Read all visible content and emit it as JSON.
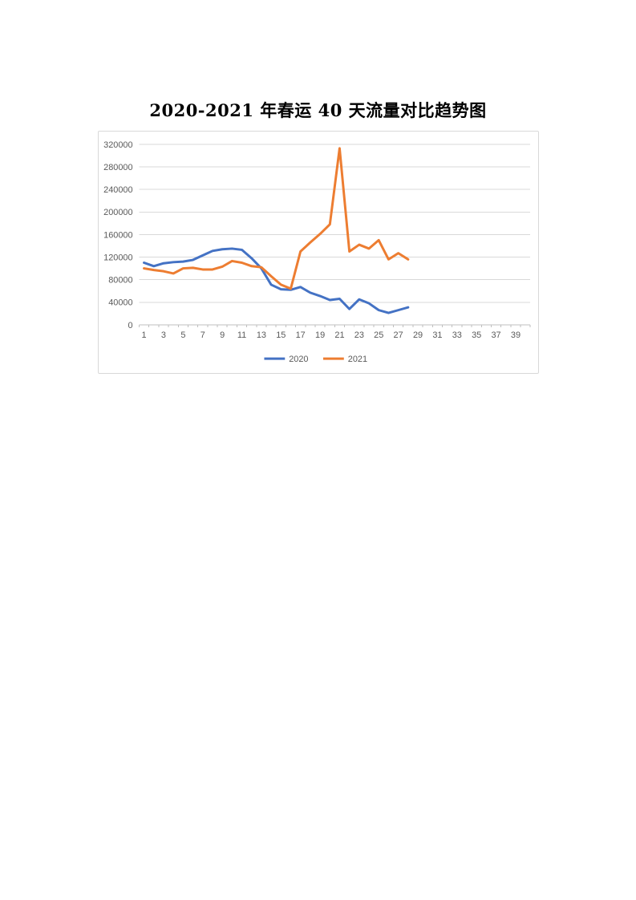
{
  "page": {
    "title": "2020-2021 年春运 40 天流量对比趋势图"
  },
  "chart_data": {
    "type": "line",
    "title": "2020-2021 年春运 40 天流量对比趋势图",
    "x_days": [
      1,
      2,
      3,
      4,
      5,
      6,
      7,
      8,
      9,
      10,
      11,
      12,
      13,
      14,
      15,
      16,
      17,
      18,
      19,
      20,
      21,
      22,
      23,
      24,
      25,
      26,
      27,
      28
    ],
    "categories_total": 40,
    "x_tick_labels": [
      "1",
      "3",
      "5",
      "7",
      "9",
      "11",
      "13",
      "15",
      "17",
      "19",
      "21",
      "23",
      "25",
      "27",
      "29",
      "31",
      "33",
      "35",
      "37",
      "39"
    ],
    "ylim": [
      0,
      320000
    ],
    "y_ticks": [
      0,
      40000,
      80000,
      120000,
      160000,
      200000,
      240000,
      280000,
      320000
    ],
    "grid": "horizontal",
    "legend_position": "bottom-center",
    "axis_text_color": "#595959",
    "gridline_color": "#d9d9d9",
    "axis_line_color": "#bfbfbf",
    "series": [
      {
        "name": "2020",
        "color": "#4472c4",
        "values": [
          110000,
          104000,
          109000,
          111000,
          112000,
          115000,
          123000,
          131000,
          134000,
          135000,
          133000,
          118000,
          100000,
          71000,
          63000,
          62000,
          67000,
          57000,
          51000,
          44000,
          46000,
          28000,
          45000,
          38000,
          26000,
          21000,
          26000,
          31000
        ]
      },
      {
        "name": "2021",
        "color": "#ed7d31",
        "values": [
          100000,
          97000,
          95000,
          91000,
          100000,
          101000,
          98000,
          98000,
          103000,
          113000,
          110000,
          104000,
          102000,
          86000,
          71000,
          64000,
          130000,
          146000,
          161000,
          178000,
          313000,
          130000,
          142000,
          135000,
          150000,
          116000,
          127000,
          116000
        ]
      }
    ]
  }
}
